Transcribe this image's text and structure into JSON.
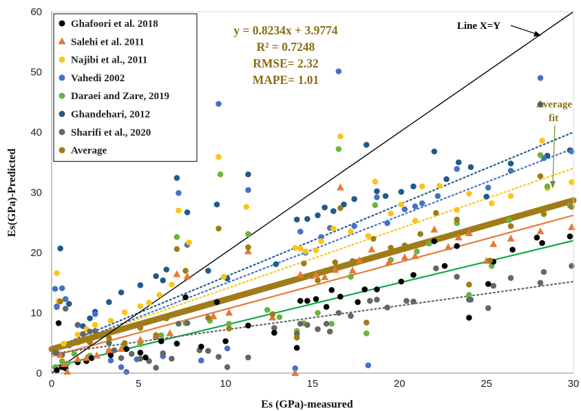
{
  "chart_data": {
    "type": "scatter",
    "xlabel": "Es (GPa)-measured",
    "ylabel": "Es(GPa)-Predicted",
    "xlim": [
      0,
      30
    ],
    "ylim": [
      0,
      60
    ],
    "xticks": [
      0,
      5,
      10,
      15,
      20,
      25,
      30
    ],
    "yticks": [
      0,
      10,
      20,
      30,
      40,
      50,
      60
    ],
    "grid": false,
    "legend_position": "top-left",
    "stats": [
      "y = 0.8234x + 3.9774",
      "R² = 0.7248",
      "RMSE= 2.32",
      "MAPE= 1.01"
    ],
    "annotations": {
      "line_xy": "Line X=Y",
      "average_fit_line1": "Average",
      "average_fit_line2": "fit"
    },
    "reference_line": {
      "name": "Line X=Y",
      "x": [
        0,
        30
      ],
      "y": [
        0,
        60
      ],
      "color": "#000000"
    },
    "series": [
      {
        "name": "Ghafoori et al. 2018",
        "marker": "circle",
        "color": "#000000",
        "fit": {
          "slope": 0.7,
          "intercept": 1.0,
          "color": "#12a84a",
          "style": "solid"
        },
        "x": [
          0.3,
          0.4,
          0.6,
          0.8,
          1.5,
          2.0,
          2.3,
          3.4,
          4.3,
          5.1,
          5.4,
          6.3,
          7.2,
          7.7,
          8.6,
          9.5,
          10.0,
          11.3,
          12.8,
          14.1,
          14.3,
          14.7,
          15.2,
          15.8,
          16.1,
          16.6,
          17.6,
          18.0,
          18.7,
          20.1,
          20.8,
          22.0,
          22.6,
          23.3,
          24.0,
          25.1,
          25.4,
          26.5,
          27.9,
          28.2,
          29.8
        ],
        "y": [
          0.5,
          8.3,
          1.0,
          0.8,
          1.8,
          2.0,
          2.5,
          3.0,
          4.0,
          3.4,
          2.6,
          5.3,
          4.9,
          12.6,
          4.4,
          11.8,
          5.3,
          7.9,
          6.7,
          4.2,
          12.0,
          12.0,
          12.3,
          11.0,
          13.8,
          12.7,
          11.8,
          13.9,
          13.9,
          15.2,
          16.3,
          21.9,
          17.8,
          21.1,
          9.2,
          14.8,
          18.5,
          20.5,
          22.5,
          21.6,
          22.7
        ]
      },
      {
        "name": "Salehi et al. 2011",
        "marker": "triangle",
        "color": "#e47a38",
        "fit": {
          "slope": 0.78,
          "intercept": 2.8,
          "color": "#e47a38",
          "style": "solid"
        },
        "x": [
          0.5,
          0.7,
          0.9,
          1.5,
          2.0,
          2.6,
          3.3,
          4.0,
          5.1,
          6.0,
          6.8,
          7.2,
          7.8,
          9.3,
          10.2,
          11.3,
          12.7,
          14.0,
          14.3,
          14.9,
          15.2,
          15.7,
          16.3,
          16.6,
          17.3,
          17.7,
          18.4,
          19.4,
          20.3,
          20.9,
          22.0,
          22.8,
          23.4,
          24.0,
          25.0,
          25.4,
          26.4,
          28.1,
          29.9
        ],
        "y": [
          3.0,
          1.5,
          0.2,
          2.3,
          2.5,
          2.9,
          3.8,
          4.0,
          5.5,
          6.2,
          6.6,
          16.4,
          16.0,
          9.4,
          10.0,
          20.2,
          9.2,
          0.0,
          16.3,
          16.1,
          16.3,
          15.9,
          17.1,
          30.8,
          17.0,
          18.7,
          20.5,
          18.4,
          19.2,
          19.4,
          23.8,
          20.9,
          22.5,
          23.2,
          18.6,
          21.4,
          22.3,
          23.5,
          24.2
        ]
      },
      {
        "name": "Najibi et al., 2011",
        "marker": "circle",
        "color": "#fcc419",
        "fit": {
          "slope": 1.0,
          "intercept": 4.0,
          "color": "#fcc419",
          "style": "dotted"
        },
        "x": [
          0.3,
          0.4,
          0.7,
          1.5,
          2.0,
          2.5,
          3.4,
          4.2,
          5.1,
          5.6,
          6.2,
          6.9,
          7.3,
          7.9,
          9.6,
          9.9,
          11.2,
          14.0,
          14.3,
          14.6,
          15.2,
          15.5,
          16.2,
          16.6,
          17.2,
          18.2,
          18.6,
          19.5,
          20.1,
          20.9,
          21.3,
          22.3,
          23.3,
          24.0,
          25.3,
          26.4,
          28.2,
          28.5,
          29.9
        ],
        "y": [
          16.6,
          12.0,
          4.9,
          6.4,
          7.3,
          8.0,
          8.7,
          10.1,
          11.1,
          11.7,
          13.0,
          14.7,
          27.0,
          21.7,
          35.9,
          16.0,
          27.6,
          20.8,
          20.7,
          20.2,
          20.4,
          21.9,
          24.0,
          39.3,
          23.5,
          22.8,
          31.8,
          26.5,
          28.0,
          25.3,
          31.0,
          31.1,
          27.1,
          29.8,
          28.2,
          29.4,
          38.6,
          30.7,
          31.7
        ]
      },
      {
        "name": "Vahedi 2002",
        "marker": "circle",
        "color": "#4472c4",
        "fit": {
          "slope": 1.12,
          "intercept": 3.7,
          "color": "#4472c4",
          "style": "dotted"
        },
        "x": [
          0.2,
          0.3,
          0.6,
          0.8,
          1.5,
          2.5,
          3.4,
          4.0,
          4.3,
          4.9,
          6.0,
          6.4,
          7.3,
          7.8,
          8.6,
          9.6,
          10.1,
          11.3,
          14.0,
          14.3,
          14.6,
          15.5,
          16.0,
          16.5,
          17.4,
          18.2,
          18.7,
          19.3,
          20.3,
          20.9,
          21.3,
          22.2,
          23.3,
          24.1,
          25.1,
          26.4,
          28.1,
          28.3,
          29.9
        ],
        "y": [
          14.0,
          11.1,
          14.1,
          12.3,
          8.0,
          9.8,
          2.1,
          1.0,
          0.2,
          2.3,
          6.0,
          2.8,
          29.9,
          21.3,
          2.1,
          44.7,
          4.1,
          30.4,
          0.8,
          23.5,
          20.0,
          22.6,
          24.1,
          50.1,
          24.4,
          1.3,
          29.2,
          24.9,
          27.2,
          27.7,
          28.2,
          29.4,
          33.9,
          12.2,
          30.8,
          33.6,
          49.0,
          35.7,
          36.8
        ]
      },
      {
        "name": "Daraei and Zare, 2019",
        "marker": "circle",
        "color": "#6cb33f",
        "fit": null,
        "x": [
          0.2,
          0.6,
          0.9,
          1.3,
          2.2,
          3.3,
          4.2,
          5.1,
          6.3,
          7.2,
          7.7,
          9.1,
          9.7,
          10.2,
          11.3,
          12.4,
          13.1,
          14.1,
          14.5,
          15.3,
          16.1,
          16.5,
          17.2,
          18.1,
          18.6,
          19.5,
          21.0,
          21.7,
          23.3,
          24.0,
          25.3,
          26.3,
          28.1,
          28.5,
          29.8
        ],
        "y": [
          1.0,
          2.0,
          1.6,
          3.2,
          2.9,
          3.7,
          4.5,
          4.8,
          6.3,
          22.6,
          8.3,
          8.7,
          33.0,
          8.2,
          23.1,
          10.5,
          9.3,
          7.0,
          8.3,
          10.0,
          8.2,
          37.2,
          16.0,
          6.6,
          27.9,
          18.8,
          20.2,
          21.5,
          24.9,
          13.0,
          17.8,
          25.4,
          36.2,
          31.0,
          27.8
        ]
      },
      {
        "name": "Ghandehari, 2012",
        "marker": "circle",
        "color": "#1f5a8b",
        "fit": {
          "slope": 1.2,
          "intercept": 4.0,
          "color": "#1f5a8b",
          "style": "dotted"
        },
        "x": [
          0.3,
          0.5,
          1.0,
          1.8,
          2.2,
          2.5,
          3.3,
          4.0,
          5.1,
          6.0,
          6.4,
          6.6,
          7.2,
          7.8,
          9.0,
          9.5,
          10.1,
          11.3,
          12.9,
          14.1,
          14.7,
          15.3,
          15.7,
          16.2,
          16.8,
          17.4,
          18.1,
          18.7,
          19.2,
          20.1,
          20.8,
          22.0,
          22.7,
          23.4,
          24.1,
          25.0,
          26.4,
          28.1,
          28.5,
          29.8
        ],
        "y": [
          11.0,
          20.7,
          11.5,
          7.8,
          9.1,
          10.2,
          11.8,
          13.4,
          14.6,
          16.1,
          15.4,
          17.2,
          32.4,
          26.7,
          17.0,
          28.0,
          15.7,
          33.0,
          18.1,
          25.5,
          25.6,
          26.2,
          27.5,
          26.9,
          28.0,
          28.9,
          37.9,
          30.2,
          29.4,
          30.1,
          31.0,
          36.8,
          32.2,
          35.0,
          34.2,
          29.3,
          34.8,
          44.6,
          36.1,
          37.0
        ]
      },
      {
        "name": "Sharifi et al., 2020",
        "marker": "circle",
        "color": "#666666",
        "fit": {
          "slope": 0.4,
          "intercept": 3.2,
          "color": "#666666",
          "style": "dotted"
        },
        "x": [
          0.2,
          0.3,
          0.6,
          0.8,
          1.5,
          1.8,
          2.2,
          2.5,
          3.3,
          3.6,
          4.0,
          4.6,
          5.1,
          5.6,
          6.0,
          6.4,
          6.9,
          7.3,
          7.8,
          8.5,
          9.0,
          9.6,
          10.1,
          11.3,
          12.8,
          14.1,
          14.3,
          14.7,
          15.3,
          15.8,
          16.0,
          16.5,
          17.2,
          18.3,
          18.7,
          19.3,
          20.4,
          20.8,
          22.1,
          23.3,
          24.0,
          25.1,
          25.4,
          26.4,
          28.1,
          28.3,
          29.9
        ],
        "y": [
          3.5,
          3.3,
          3.0,
          10.7,
          8.0,
          6.5,
          6.9,
          7.0,
          5.0,
          3.8,
          2.5,
          3.2,
          2.4,
          2.0,
          0.9,
          3.3,
          2.4,
          8.2,
          8.3,
          3.8,
          3.7,
          2.7,
          1.0,
          2.6,
          7.5,
          6.5,
          8.2,
          8.0,
          7.3,
          8.2,
          6.9,
          10.0,
          9.5,
          12.0,
          12.2,
          10.9,
          12.0,
          11.9,
          17.4,
          16.0,
          12.2,
          10.8,
          14.5,
          15.8,
          15.0,
          16.8,
          17.8
        ]
      },
      {
        "name": "Average",
        "marker": "circle",
        "color": "#a07c18",
        "fit": {
          "slope": 0.8234,
          "intercept": 3.9774,
          "color": "#a07c18",
          "style": "thick"
        },
        "x": [
          0.3,
          0.5,
          1.0,
          1.5,
          2.2,
          3.3,
          4.2,
          5.1,
          6.0,
          6.6,
          7.2,
          7.7,
          9.0,
          9.6,
          10.2,
          11.3,
          12.7,
          14.1,
          14.5,
          14.9,
          15.3,
          15.7,
          16.3,
          16.6,
          17.3,
          18.1,
          18.5,
          19.5,
          20.3,
          21.2,
          22.1,
          23.3,
          24.0,
          25.2,
          26.4,
          28.1,
          28.3,
          29.9
        ],
        "y": [
          4.2,
          11.9,
          4.6,
          5.1,
          5.1,
          5.8,
          5.0,
          7.5,
          6.3,
          9.1,
          20.6,
          17.0,
          9.2,
          24.0,
          7.4,
          20.9,
          9.8,
          5.9,
          18.2,
          16.3,
          15.4,
          16.9,
          18.4,
          27.4,
          18.6,
          8.4,
          22.3,
          20.8,
          21.2,
          23.1,
          26.6,
          25.5,
          14.7,
          18.7,
          24.4,
          32.7,
          26.4,
          27.6
        ]
      }
    ]
  }
}
